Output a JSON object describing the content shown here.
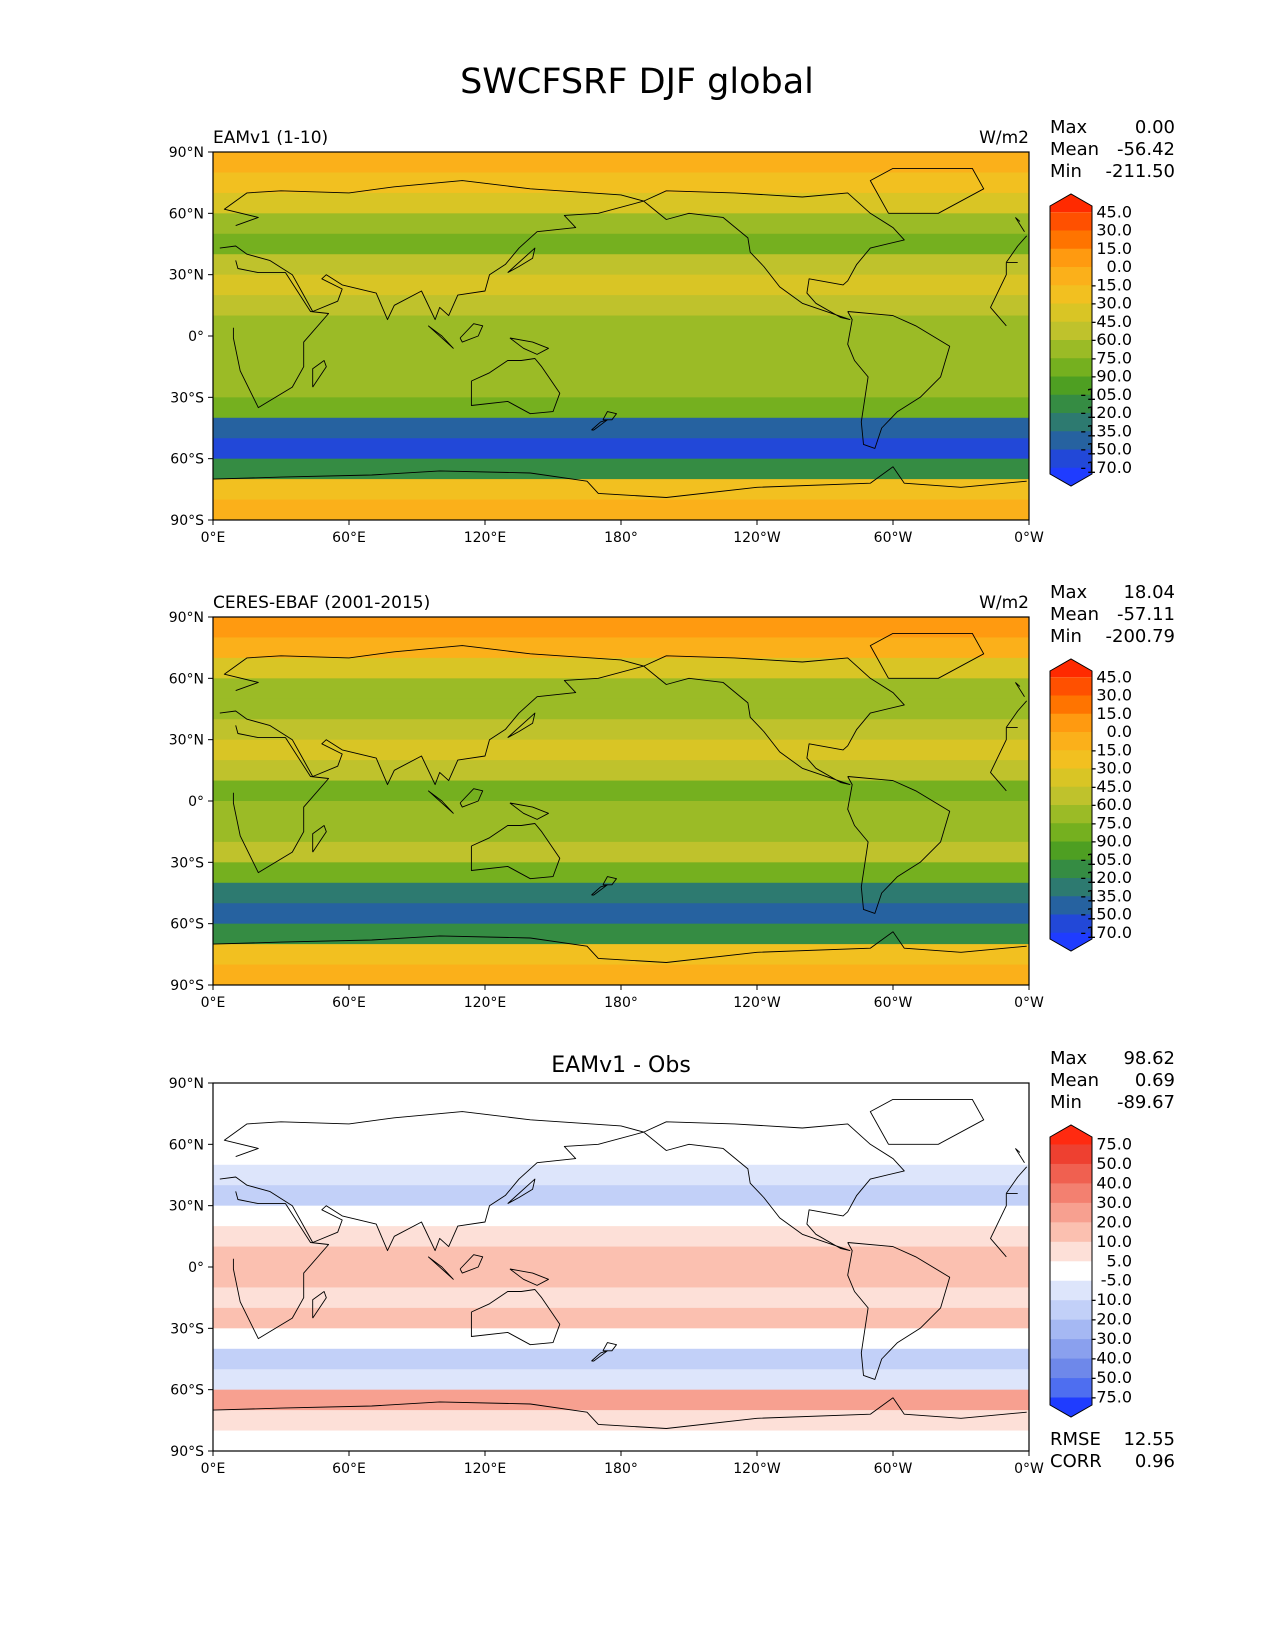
{
  "figure": {
    "title": "SWCFSRF DJF global"
  },
  "chart_data": [
    {
      "type": "heatmap",
      "title": "EAMv1 (1-10)",
      "units": "W/m2",
      "stats": {
        "max_label": "Max",
        "max": "0.00",
        "mean_label": "Mean",
        "mean": "-56.42",
        "min_label": "Min",
        "min": "-211.50"
      },
      "xticks": [
        "0°E",
        "60°E",
        "120°E",
        "180°",
        "120°W",
        "60°W",
        "0°W"
      ],
      "yticks": [
        "90°N",
        "60°N",
        "30°N",
        "0°",
        "30°S",
        "60°S",
        "90°S"
      ],
      "colorbar_levels": [
        "45.0",
        "30.0",
        "15.0",
        "0.0",
        "-15.0",
        "-30.0",
        "-45.0",
        "-60.0",
        "-75.0",
        "-90.0",
        "-105.0",
        "-120.0",
        "-135.0",
        "-150.0",
        "-170.0"
      ],
      "colorbar_colors": [
        "#ff2a00",
        "#ff5000",
        "#ff7400",
        "#ff9a10",
        "#fbb01a",
        "#f2c020",
        "#d9c525",
        "#bfc22c",
        "#9bbb26",
        "#75b01f",
        "#4e9f22",
        "#358c43",
        "#2d7a70",
        "#2662a0",
        "#2248d8",
        "#1f3cff"
      ],
      "zonal_profile": {
        "lat": [
          85,
          75,
          65,
          55,
          45,
          35,
          25,
          15,
          5,
          -5,
          -15,
          -25,
          -35,
          -45,
          -55,
          -65,
          -75,
          -85
        ],
        "value": [
          -15,
          -20,
          -40,
          -65,
          -80,
          -60,
          -40,
          -55,
          -75,
          -70,
          -70,
          -65,
          -80,
          -140,
          -160,
          -120,
          -30,
          -15
        ]
      }
    },
    {
      "type": "heatmap",
      "title": "CERES-EBAF (2001-2015)",
      "units": "W/m2",
      "stats": {
        "max_label": "Max",
        "max": "18.04",
        "mean_label": "Mean",
        "mean": "-57.11",
        "min_label": "Min",
        "min": "-200.79"
      },
      "xticks": [
        "0°E",
        "60°E",
        "120°E",
        "180°",
        "120°W",
        "60°W",
        "0°W"
      ],
      "yticks": [
        "90°N",
        "60°N",
        "30°N",
        "0°",
        "30°S",
        "60°S",
        "90°S"
      ],
      "colorbar_levels": [
        "45.0",
        "30.0",
        "15.0",
        "0.0",
        "-15.0",
        "-30.0",
        "-45.0",
        "-60.0",
        "-75.0",
        "-90.0",
        "-105.0",
        "-120.0",
        "-135.0",
        "-150.0",
        "-170.0"
      ],
      "colorbar_colors": [
        "#ff2a00",
        "#ff5000",
        "#ff7400",
        "#ff9a10",
        "#fbb01a",
        "#f2c020",
        "#d9c525",
        "#bfc22c",
        "#9bbb26",
        "#75b01f",
        "#4e9f22",
        "#358c43",
        "#2d7a70",
        "#2662a0",
        "#2248d8",
        "#1f3cff"
      ],
      "zonal_profile": {
        "lat": [
          85,
          75,
          65,
          55,
          45,
          35,
          25,
          15,
          5,
          -5,
          -15,
          -25,
          -35,
          -45,
          -55,
          -65,
          -75,
          -85
        ],
        "value": [
          5,
          -15,
          -40,
          -65,
          -75,
          -55,
          -40,
          -55,
          -80,
          -70,
          -65,
          -60,
          -80,
          -130,
          -150,
          -110,
          -25,
          -10
        ]
      }
    },
    {
      "type": "heatmap",
      "title": "EAMv1 - Obs",
      "units": "",
      "stats": {
        "max_label": "Max",
        "max": "98.62",
        "mean_label": "Mean",
        "mean": "0.69",
        "min_label": "Min",
        "min": "-89.67"
      },
      "extra_stats": {
        "rmse_label": "RMSE",
        "rmse": "12.55",
        "corr_label": "CORR",
        "corr": "0.96"
      },
      "xticks": [
        "0°E",
        "60°E",
        "120°E",
        "180°",
        "120°W",
        "60°W",
        "0°W"
      ],
      "yticks": [
        "90°N",
        "60°N",
        "30°N",
        "0°",
        "30°S",
        "60°S",
        "90°S"
      ],
      "colorbar_levels": [
        "75.0",
        "50.0",
        "40.0",
        "30.0",
        "20.0",
        "10.0",
        "5.0",
        "-5.0",
        "-10.0",
        "-20.0",
        "-30.0",
        "-40.0",
        "-50.0",
        "-75.0"
      ],
      "colorbar_colors": [
        "#ff2a10",
        "#ee4030",
        "#f06050",
        "#f38070",
        "#f7a090",
        "#fbc0b0",
        "#fde0d8",
        "#ffffff",
        "#dde5fb",
        "#c2d0f8",
        "#a5b8f3",
        "#8aa0ee",
        "#6e88ea",
        "#4e6ef0",
        "#1f3cff"
      ],
      "zonal_profile": {
        "lat": [
          85,
          75,
          65,
          55,
          45,
          35,
          25,
          15,
          5,
          -5,
          -15,
          -25,
          -35,
          -45,
          -55,
          -65,
          -75,
          -85
        ],
        "value": [
          0,
          2,
          -5,
          0,
          -10,
          -12,
          0,
          5,
          15,
          10,
          8,
          12,
          0,
          -15,
          -8,
          20,
          5,
          0
        ]
      }
    }
  ]
}
